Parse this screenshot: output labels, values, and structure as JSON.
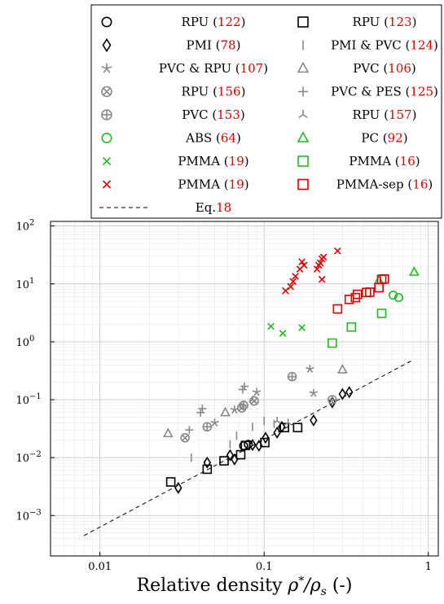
{
  "chart_data": {
    "type": "scatter",
    "title": "",
    "xlabel": "Relative density",
    "xlabel_math": "ρ*/ρs",
    "xlabel_unit": "(-)",
    "ylabel": "",
    "x_scale": "log",
    "y_scale": "log",
    "xlim": [
      0.005,
      1.15
    ],
    "ylim": [
      0.0002,
      120
    ],
    "grid": true,
    "legend_placement": "top",
    "x_ticks": [
      {
        "value": 0.01,
        "label": "0.01"
      },
      {
        "value": 0.1,
        "label": "0.1"
      },
      {
        "value": 1,
        "label": "1"
      }
    ],
    "y_ticks": [
      {
        "value": 0.001,
        "base": "10",
        "exp": "−3"
      },
      {
        "value": 0.01,
        "base": "10",
        "exp": "−2"
      },
      {
        "value": 0.1,
        "base": "10",
        "exp": "−1"
      },
      {
        "value": 1,
        "base": "10",
        "exp": "0"
      },
      {
        "value": 10,
        "base": "10",
        "exp": "1"
      },
      {
        "value": 100,
        "base": "10",
        "exp": "2"
      }
    ],
    "series": [
      {
        "name": "RPU",
        "ref": "122",
        "marker": "circle",
        "color": "#000000",
        "points": [
          [
            0.075,
            0.016
          ],
          [
            0.08,
            0.017
          ]
        ]
      },
      {
        "name": "RPU",
        "ref": "123",
        "marker": "square",
        "color": "#000000",
        "points": [
          [
            0.027,
            0.0038
          ],
          [
            0.045,
            0.0063
          ],
          [
            0.057,
            0.0088
          ],
          [
            0.072,
            0.0112
          ],
          [
            0.077,
            0.0162
          ],
          [
            0.101,
            0.0182
          ],
          [
            0.133,
            0.033
          ],
          [
            0.16,
            0.033
          ]
        ]
      },
      {
        "name": "PMI",
        "ref": "78",
        "marker": "diamond",
        "color": "#000000",
        "points": [
          [
            0.03,
            0.003
          ],
          [
            0.045,
            0.0082
          ],
          [
            0.062,
            0.011
          ],
          [
            0.066,
            0.0093
          ],
          [
            0.085,
            0.0165
          ],
          [
            0.093,
            0.016
          ],
          [
            0.102,
            0.022
          ],
          [
            0.12,
            0.027
          ],
          [
            0.128,
            0.034
          ],
          [
            0.2,
            0.044
          ],
          [
            0.26,
            0.09
          ],
          [
            0.3,
            0.125
          ],
          [
            0.33,
            0.135
          ]
        ]
      },
      {
        "name": "PMI & PVC",
        "ref": "124",
        "marker": "vbar",
        "color": "#888888",
        "points": [
          [
            0.036,
            0.01
          ],
          [
            0.062,
            0.017
          ],
          [
            0.068,
            0.024
          ],
          [
            0.085,
            0.034
          ],
          [
            0.1,
            0.043
          ],
          [
            0.115,
            0.038
          ]
        ]
      },
      {
        "name": "PVC & RPU",
        "ref": "107",
        "marker": "star",
        "color": "#888888",
        "points": [
          [
            0.05,
            0.04
          ],
          [
            0.066,
            0.067
          ],
          [
            0.09,
            0.135
          ],
          [
            0.19,
            0.34
          ],
          [
            0.2,
            0.13
          ]
        ]
      },
      {
        "name": "PVC",
        "ref": "106",
        "marker": "triangle",
        "color": "#888888",
        "points": [
          [
            0.026,
            0.026
          ],
          [
            0.058,
            0.06
          ],
          [
            0.3,
            0.33
          ]
        ]
      },
      {
        "name": "RPU",
        "ref": "156",
        "marker": "otimes",
        "color": "#888888",
        "points": [
          [
            0.033,
            0.022
          ],
          [
            0.073,
            0.072
          ],
          [
            0.087,
            0.095
          ]
        ]
      },
      {
        "name": "PVC & PES",
        "ref": "125",
        "marker": "plus",
        "color": "#888888",
        "points": [
          [
            0.035,
            0.03
          ],
          [
            0.041,
            0.06
          ],
          [
            0.042,
            0.07
          ],
          [
            0.074,
            0.15
          ],
          [
            0.076,
            0.17
          ]
        ]
      },
      {
        "name": "PVC",
        "ref": "153",
        "marker": "oplus",
        "color": "#888888",
        "points": [
          [
            0.045,
            0.034
          ],
          [
            0.075,
            0.08
          ],
          [
            0.148,
            0.25
          ],
          [
            0.26,
            0.1
          ]
        ]
      },
      {
        "name": "RPU",
        "ref": "157",
        "marker": "tri3",
        "color": "#888888",
        "points": [
          [
            0.085,
            0.1
          ],
          [
            0.12,
            0.043
          ],
          [
            0.14,
            0.04
          ]
        ]
      },
      {
        "name": "ABS",
        "ref": "64",
        "marker": "circle",
        "color": "#22bb22",
        "points": [
          [
            0.61,
            6.4
          ],
          [
            0.66,
            5.8
          ]
        ]
      },
      {
        "name": "PC",
        "ref": "92",
        "marker": "triangle",
        "color": "#22bb22",
        "points": [
          [
            0.5,
            11.5
          ],
          [
            0.82,
            16
          ]
        ]
      },
      {
        "name": "PMMA",
        "ref": "19",
        "marker": "x",
        "color": "#22bb22",
        "points": [
          [
            0.11,
            1.85
          ],
          [
            0.13,
            1.4
          ],
          [
            0.17,
            1.75
          ]
        ]
      },
      {
        "name": "PMMA",
        "ref": "16",
        "marker": "square",
        "color": "#22bb22",
        "points": [
          [
            0.26,
            0.95
          ],
          [
            0.34,
            1.8
          ],
          [
            0.52,
            3.1
          ]
        ]
      },
      {
        "name": "PMMA",
        "ref": "19",
        "marker": "x",
        "color": "#dd0000",
        "points": [
          [
            0.135,
            7.6
          ],
          [
            0.145,
            9
          ],
          [
            0.15,
            11
          ],
          [
            0.155,
            13.5
          ],
          [
            0.165,
            18
          ],
          [
            0.17,
            24
          ],
          [
            0.175,
            21
          ],
          [
            0.21,
            18
          ],
          [
            0.215,
            21
          ],
          [
            0.22,
            23
          ],
          [
            0.225,
            27
          ],
          [
            0.23,
            29
          ],
          [
            0.225,
            12
          ],
          [
            0.28,
            37
          ]
        ]
      },
      {
        "name": "PMMA-sep",
        "ref": "16",
        "marker": "square",
        "color": "#dd0000",
        "points": [
          [
            0.28,
            3.7
          ],
          [
            0.33,
            5.4
          ],
          [
            0.36,
            5.8
          ],
          [
            0.37,
            6.6
          ],
          [
            0.42,
            7.1
          ],
          [
            0.44,
            7.2
          ],
          [
            0.5,
            8.6
          ],
          [
            0.52,
            12
          ],
          [
            0.54,
            12.2
          ]
        ]
      }
    ],
    "fit_line": {
      "name": "Eq.",
      "ref": "18",
      "style": "dashed",
      "color": "#000000",
      "points": [
        [
          0.008,
          0.00045
        ],
        [
          0.8,
          0.48
        ]
      ]
    },
    "legend": {
      "rows": [
        [
          {
            "series": 0
          },
          {
            "series": 1
          }
        ],
        [
          {
            "series": 2
          },
          {
            "series": 3
          }
        ],
        [
          {
            "series": 4
          },
          {
            "series": 5
          }
        ],
        [
          {
            "series": 6
          },
          {
            "series": 7
          }
        ],
        [
          {
            "series": 8
          },
          {
            "series": 9
          }
        ],
        [
          {
            "series": 10
          },
          {
            "series": 11
          }
        ],
        [
          {
            "series": 12
          },
          {
            "series": 13
          }
        ],
        [
          {
            "series": 14
          },
          {
            "series": 15
          }
        ],
        [
          {
            "fit": true
          }
        ]
      ],
      "ref_color": "#dd0000"
    }
  }
}
